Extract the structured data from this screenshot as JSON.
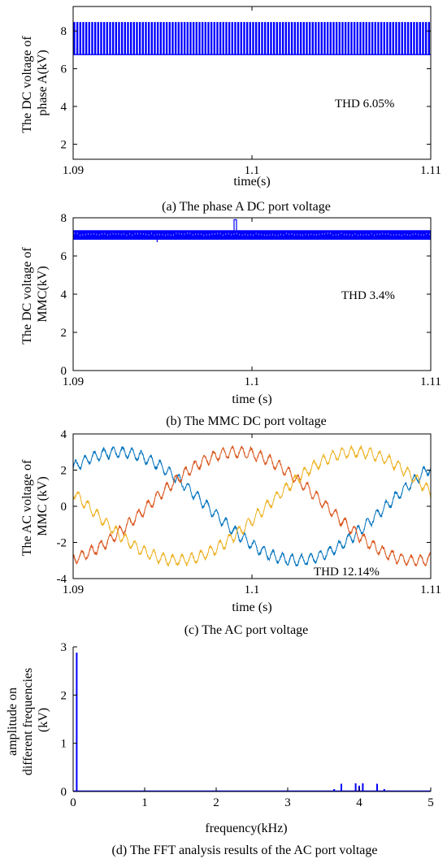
{
  "chart_data": [
    {
      "type": "line",
      "panel": "a",
      "caption": "(a) The phase A DC port voltage",
      "xlabel": "time(s)",
      "ylabel": [
        "The DC  voltage of",
        "phase A(kV)"
      ],
      "xlim": [
        1.09,
        1.11
      ],
      "ylim": [
        1.2,
        9.3
      ],
      "xticks": [
        1.09,
        1.1,
        1.11
      ],
      "xtick_labels": [
        "1.09",
        "1.1",
        "1.11"
      ],
      "yticks": [
        2,
        4,
        6,
        8
      ],
      "ytick_labels": [
        "2",
        "4",
        "6",
        "8"
      ],
      "grid": false,
      "annotation": "THD 6.05%",
      "series": [
        {
          "color": "#0000ff",
          "pattern": "pwm",
          "low": 6.75,
          "high": 8.45,
          "pulses": 120
        }
      ]
    },
    {
      "type": "line",
      "panel": "b",
      "caption": "(b) The MMC DC port voltage",
      "xlabel": "time (s)",
      "ylabel": [
        "The DC voltage of",
        "MMC(kV)"
      ],
      "xlim": [
        1.09,
        1.11
      ],
      "ylim": [
        0,
        8
      ],
      "xticks": [
        1.09,
        1.1,
        1.11
      ],
      "xtick_labels": [
        "1.09",
        "1.1",
        "1.11"
      ],
      "yticks": [
        0,
        2,
        4,
        6,
        8
      ],
      "ytick_labels": [
        "0",
        "2",
        "4",
        "6",
        "8"
      ],
      "grid": false,
      "annotation": "THD 3.4%",
      "series": [
        {
          "color": "#0000ff",
          "pattern": "band",
          "low": 6.85,
          "high": 7.35,
          "spike_x": 1.099,
          "spike_y": 7.9
        }
      ]
    },
    {
      "type": "line",
      "panel": "c",
      "caption": "(c) The AC port voltage",
      "xlabel": "time (s)",
      "ylabel": [
        "The AC voltage of",
        "MMC (kV)"
      ],
      "xlim": [
        1.09,
        1.11
      ],
      "ylim": [
        -4,
        4
      ],
      "xticks": [
        1.09,
        1.1,
        1.11
      ],
      "xtick_labels": [
        "1.09",
        "1.1",
        "1.11"
      ],
      "yticks": [
        -4,
        -2,
        0,
        2,
        4
      ],
      "ytick_labels": [
        "-4",
        "-2",
        "0",
        "2",
        "4"
      ],
      "grid": false,
      "annotation": "THD 12.14%",
      "series": [
        {
          "color": "#0072bd",
          "amplitude": 3.0,
          "phase_deg": 225,
          "freq_hz": 50,
          "ripple": 0.35
        },
        {
          "color": "#d95319",
          "amplitude": 3.0,
          "phase_deg": 105,
          "freq_hz": 50,
          "ripple": 0.35
        },
        {
          "color": "#edb120",
          "amplitude": 3.0,
          "phase_deg": -15,
          "freq_hz": 50,
          "ripple": 0.35
        }
      ]
    },
    {
      "type": "bar",
      "panel": "d",
      "caption": "(d) The FFT analysis results of the AC port voltage",
      "xlabel": "frequency(kHz)",
      "ylabel": [
        "amplitude on",
        "different frequencies",
        "(kV)"
      ],
      "xlim": [
        0,
        5
      ],
      "ylim": [
        0,
        3
      ],
      "xticks": [
        0,
        1,
        2,
        3,
        4,
        5
      ],
      "xtick_labels": [
        "0",
        "1",
        "2",
        "3",
        "4",
        "5"
      ],
      "yticks": [
        0,
        1,
        2,
        3
      ],
      "ytick_labels": [
        "0",
        "1",
        "2",
        "3"
      ],
      "grid": false,
      "series": [
        {
          "color": "#0000ff",
          "x": [
            0.05,
            3.65,
            3.75,
            3.95,
            4.0,
            4.05,
            4.25,
            4.35
          ],
          "values": [
            2.88,
            0.05,
            0.16,
            0.17,
            0.12,
            0.17,
            0.16,
            0.05
          ]
        }
      ]
    }
  ]
}
